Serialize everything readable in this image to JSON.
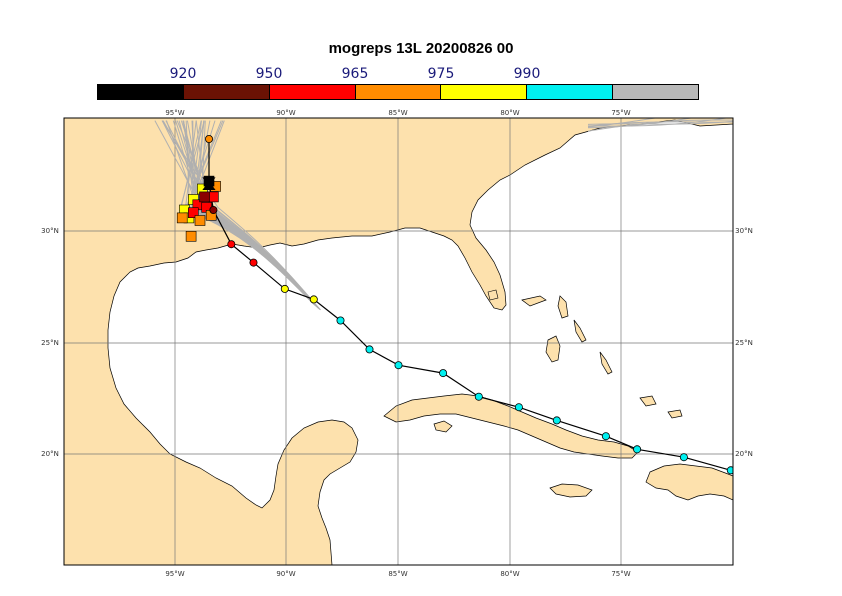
{
  "title": "mogreps 13L 20200826 00",
  "colorbar": {
    "labels": [
      "920",
      "950",
      "965",
      "975",
      "990"
    ],
    "colors": [
      "#000000",
      "#6b1204",
      "#ff0000",
      "#ff8c00",
      "#ffff00",
      "#00f0f0",
      "#b8b8b8"
    ]
  },
  "map_axes": {
    "lon_range": [
      -100,
      -70
    ],
    "lat_range": [
      15,
      32
    ],
    "lon_ticks": [
      "95°W",
      "90°W",
      "85°W",
      "80°W",
      "75°W"
    ],
    "lat_ticks": [
      "30°N",
      "25°N",
      "20°N"
    ]
  },
  "colors": {
    "land": "#fde1ad",
    "water": "#ffffff",
    "ensemble_tracks": "#b0b0b0",
    "observed_track": "#000000"
  },
  "observed_track": [
    {
      "lon": -70.1,
      "lat": 18.6,
      "color": "cyan"
    },
    {
      "lon": -72.2,
      "lat": 19.1,
      "color": "cyan"
    },
    {
      "lon": -74.3,
      "lat": 19.4,
      "color": "cyan"
    },
    {
      "lon": -75.7,
      "lat": 19.9,
      "color": "cyan"
    },
    {
      "lon": -77.9,
      "lat": 20.5,
      "color": "cyan"
    },
    {
      "lon": -79.6,
      "lat": 21.0,
      "color": "cyan"
    },
    {
      "lon": -81.4,
      "lat": 21.4,
      "color": "cyan"
    },
    {
      "lon": -83.0,
      "lat": 22.3,
      "color": "cyan"
    },
    {
      "lon": -85.0,
      "lat": 22.6,
      "color": "cyan"
    },
    {
      "lon": -86.3,
      "lat": 23.2,
      "color": "cyan"
    },
    {
      "lon": -87.6,
      "lat": 24.3,
      "color": "cyan"
    },
    {
      "lon": -88.8,
      "lat": 25.1,
      "color": "yellow"
    },
    {
      "lon": -90.1,
      "lat": 25.5,
      "color": "yellow"
    },
    {
      "lon": -91.5,
      "lat": 26.5,
      "color": "red"
    },
    {
      "lon": -92.5,
      "lat": 27.2,
      "color": "red"
    },
    {
      "lon": -93.3,
      "lat": 28.5,
      "color": "darkred"
    },
    {
      "lon": -93.5,
      "lat": 29.5,
      "color": "black"
    },
    {
      "lon": -93.5,
      "lat": 31.2,
      "color": "orange"
    }
  ],
  "ensemble_squares": [
    {
      "lon": -94.6,
      "lat": 28.5,
      "color": "yellow"
    },
    {
      "lon": -94.2,
      "lat": 28.9,
      "color": "yellow"
    },
    {
      "lon": -94.4,
      "lat": 28.2,
      "color": "yellow"
    },
    {
      "lon": -93.8,
      "lat": 29.3,
      "color": "yellow"
    },
    {
      "lon": -94.0,
      "lat": 28.7,
      "color": "red"
    },
    {
      "lon": -93.6,
      "lat": 28.6,
      "color": "red"
    },
    {
      "lon": -94.2,
      "lat": 28.4,
      "color": "red"
    },
    {
      "lon": -93.3,
      "lat": 29.0,
      "color": "red"
    },
    {
      "lon": -93.9,
      "lat": 28.1,
      "color": "orange"
    },
    {
      "lon": -93.4,
      "lat": 28.3,
      "color": "orange"
    },
    {
      "lon": -94.7,
      "lat": 28.2,
      "color": "orange"
    },
    {
      "lon": -93.2,
      "lat": 29.4,
      "color": "orange"
    },
    {
      "lon": -94.3,
      "lat": 27.5,
      "color": "orange"
    },
    {
      "lon": -93.7,
      "lat": 29.0,
      "color": "darkred"
    },
    {
      "lon": -93.5,
      "lat": 29.6,
      "color": "black"
    }
  ]
}
